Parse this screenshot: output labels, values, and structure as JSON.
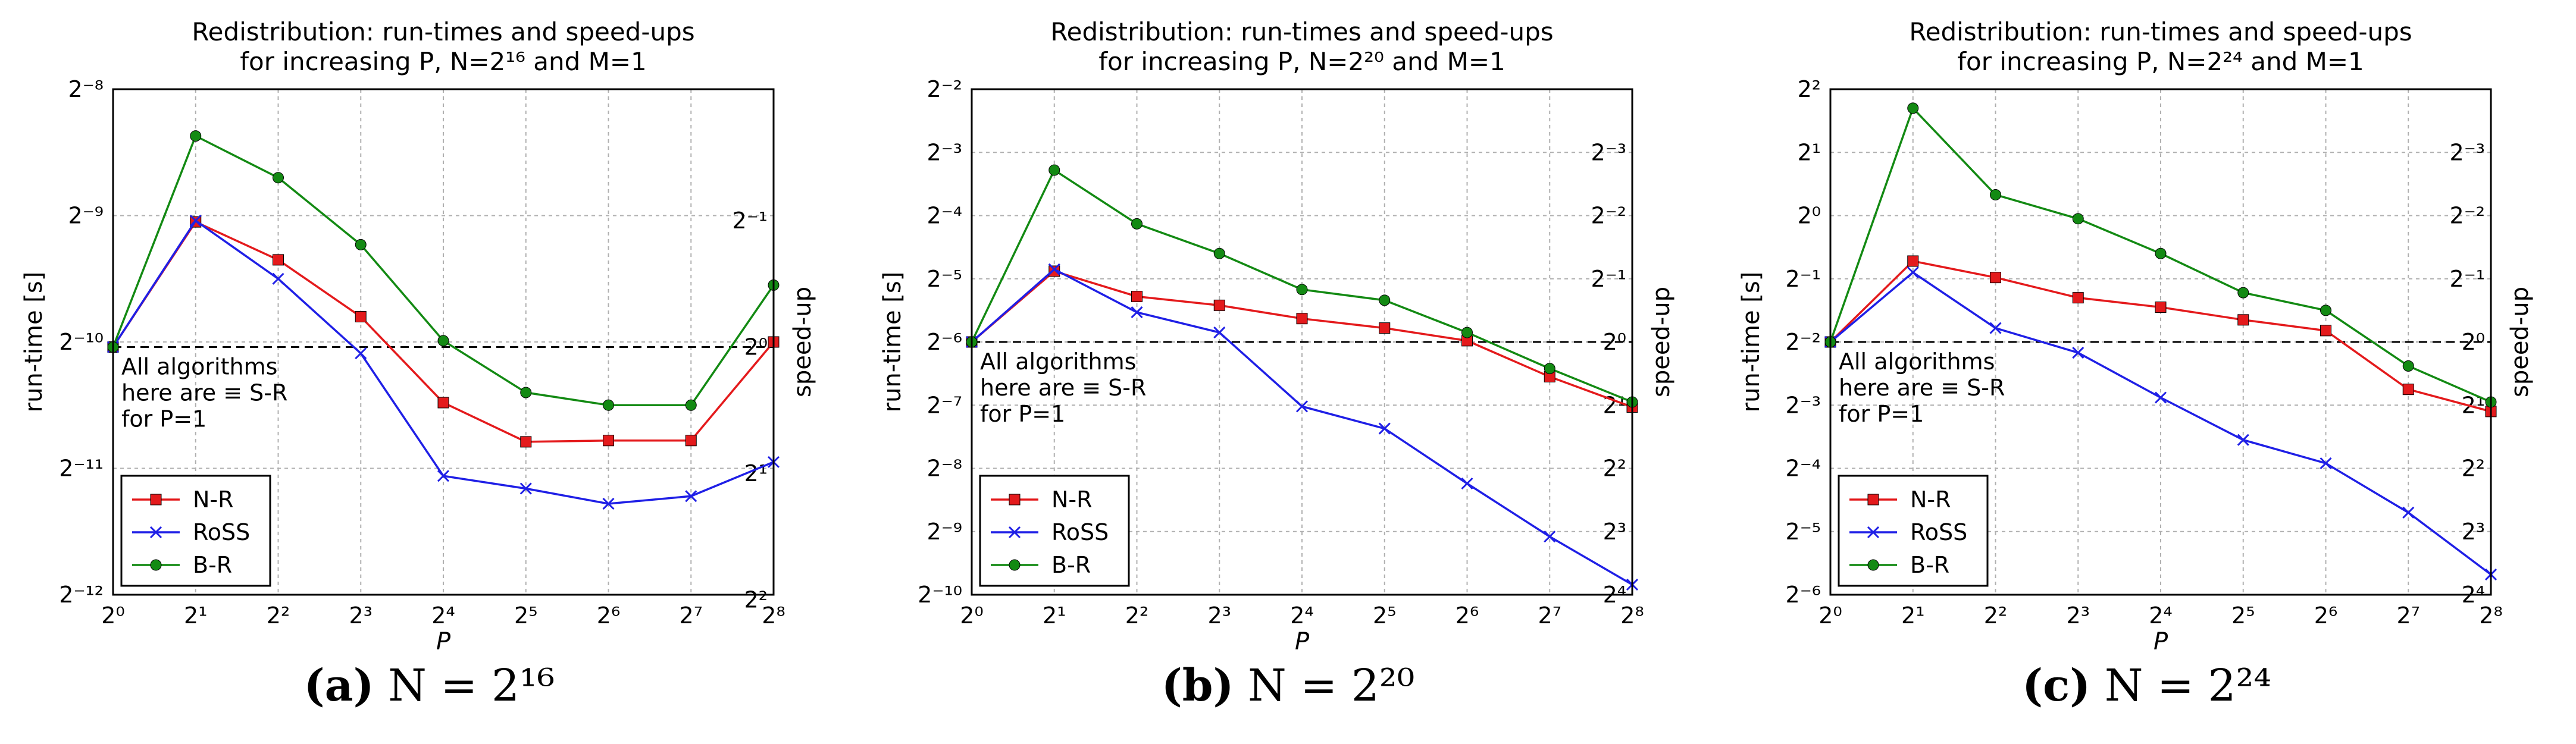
{
  "chart_data": [
    {
      "type": "line",
      "panel_label": "(a)",
      "caption": "N = 2¹⁶",
      "title_line1": "Redistribution: run-times and speed-ups",
      "title_line2": "for increasing P, N=2¹⁶ and M=1",
      "xlabel": "P",
      "ylabel_left": "run-time [s]",
      "ylabel_right": "speed-up",
      "x_scale": "log2",
      "y_scale": "log2",
      "x": [
        1,
        2,
        4,
        8,
        16,
        32,
        64,
        128,
        256
      ],
      "x_ticks": [
        "2⁰",
        "2¹",
        "2²",
        "2³",
        "2⁴",
        "2⁵",
        "2⁶",
        "2⁷",
        "2⁸"
      ],
      "y_exponent_range": [
        -12,
        -8
      ],
      "y_ticks": [
        "2⁻¹²",
        "2⁻¹¹",
        "2⁻¹⁰",
        "2⁻⁹",
        "2⁻⁸"
      ],
      "speedup_ticks": [
        "2²",
        "2¹",
        "2⁰",
        "2⁻¹"
      ],
      "reference_line_exponent": -10.04,
      "annotation": [
        "All algorithms",
        "here are ≡ S-R",
        "for P=1"
      ],
      "legend_location": "lower-left",
      "series": [
        {
          "name": "N-R",
          "color": "#e41a1c",
          "marker": "square",
          "log2_values": [
            -10.04,
            -9.05,
            -9.35,
            -9.8,
            -10.48,
            -10.79,
            -10.78,
            -10.78,
            -10.0
          ]
        },
        {
          "name": "RoSS",
          "color": "#1f1fe6",
          "marker": "x",
          "log2_values": [
            -10.04,
            -9.04,
            -9.5,
            -10.09,
            -11.06,
            -11.16,
            -11.28,
            -11.22,
            -10.95
          ]
        },
        {
          "name": "B-R",
          "color": "#138a13",
          "marker": "circle",
          "log2_values": [
            -10.04,
            -8.37,
            -8.7,
            -9.23,
            -9.99,
            -10.4,
            -10.5,
            -10.5,
            -9.55
          ]
        }
      ]
    },
    {
      "type": "line",
      "panel_label": "(b)",
      "caption": "N = 2²⁰",
      "title_line1": "Redistribution: run-times and speed-ups",
      "title_line2": "for increasing P, N=2²⁰ and M=1",
      "xlabel": "P",
      "ylabel_left": "run-time [s]",
      "ylabel_right": "speed-up",
      "x_scale": "log2",
      "y_scale": "log2",
      "x": [
        1,
        2,
        4,
        8,
        16,
        32,
        64,
        128,
        256
      ],
      "x_ticks": [
        "2⁰",
        "2¹",
        "2²",
        "2³",
        "2⁴",
        "2⁵",
        "2⁶",
        "2⁷",
        "2⁸"
      ],
      "y_exponent_range": [
        -10,
        -2
      ],
      "y_ticks": [
        "2⁻¹⁰",
        "2⁻⁹",
        "2⁻⁸",
        "2⁻⁷",
        "2⁻⁶",
        "2⁻⁵",
        "2⁻⁴",
        "2⁻³",
        "2⁻²"
      ],
      "speedup_ticks": [
        "2⁴",
        "2³",
        "2²",
        "2¹",
        "2⁰",
        "2⁻¹",
        "2⁻²",
        "2⁻³"
      ],
      "reference_line_exponent": -6.0,
      "annotation": [
        "All algorithms",
        "here are ≡ S-R",
        "for P=1"
      ],
      "legend_location": "lower-left",
      "series": [
        {
          "name": "N-R",
          "color": "#e41a1c",
          "marker": "square",
          "log2_values": [
            -6.0,
            -4.88,
            -5.28,
            -5.42,
            -5.63,
            -5.78,
            -5.98,
            -6.55,
            -7.03
          ]
        },
        {
          "name": "RoSS",
          "color": "#1f1fe6",
          "marker": "x",
          "log2_values": [
            -6.0,
            -4.85,
            -5.53,
            -5.85,
            -7.02,
            -7.37,
            -8.24,
            -9.08,
            -9.84
          ]
        },
        {
          "name": "B-R",
          "color": "#138a13",
          "marker": "circle",
          "log2_values": [
            -6.0,
            -3.28,
            -4.13,
            -4.6,
            -5.17,
            -5.34,
            -5.85,
            -6.42,
            -6.95
          ]
        }
      ]
    },
    {
      "type": "line",
      "panel_label": "(c)",
      "caption": "N = 2²⁴",
      "title_line1": "Redistribution: run-times and speed-ups",
      "title_line2": "for increasing P, N=2²⁴ and M=1",
      "xlabel": "P",
      "ylabel_left": "run-time [s]",
      "ylabel_right": "speed-up",
      "x_scale": "log2",
      "y_scale": "log2",
      "x": [
        1,
        2,
        4,
        8,
        16,
        32,
        64,
        128,
        256
      ],
      "x_ticks": [
        "2⁰",
        "2¹",
        "2²",
        "2³",
        "2⁴",
        "2⁵",
        "2⁶",
        "2⁷",
        "2⁸"
      ],
      "y_exponent_range": [
        -6,
        2
      ],
      "y_ticks": [
        "2⁻⁶",
        "2⁻⁵",
        "2⁻⁴",
        "2⁻³",
        "2⁻²",
        "2⁻¹",
        "2⁰",
        "2¹",
        "2²"
      ],
      "speedup_ticks": [
        "2⁴",
        "2³",
        "2²",
        "2¹",
        "2⁰",
        "2⁻¹",
        "2⁻²",
        "2⁻³"
      ],
      "reference_line_exponent": -2.0,
      "annotation": [
        "All algorithms",
        "here are ≡ S-R",
        "for P=1"
      ],
      "legend_location": "lower-left",
      "series": [
        {
          "name": "N-R",
          "color": "#e41a1c",
          "marker": "square",
          "log2_values": [
            -2.0,
            -0.72,
            -0.98,
            -1.3,
            -1.45,
            -1.65,
            -1.82,
            -2.75,
            -3.1
          ]
        },
        {
          "name": "RoSS",
          "color": "#1f1fe6",
          "marker": "x",
          "log2_values": [
            -2.0,
            -0.9,
            -1.78,
            -2.17,
            -2.88,
            -3.55,
            -3.92,
            -4.7,
            -5.68
          ]
        },
        {
          "name": "B-R",
          "color": "#138a13",
          "marker": "circle",
          "log2_values": [
            -2.0,
            1.7,
            0.33,
            -0.05,
            -0.6,
            -1.22,
            -1.5,
            -2.38,
            -2.95
          ]
        }
      ]
    }
  ]
}
